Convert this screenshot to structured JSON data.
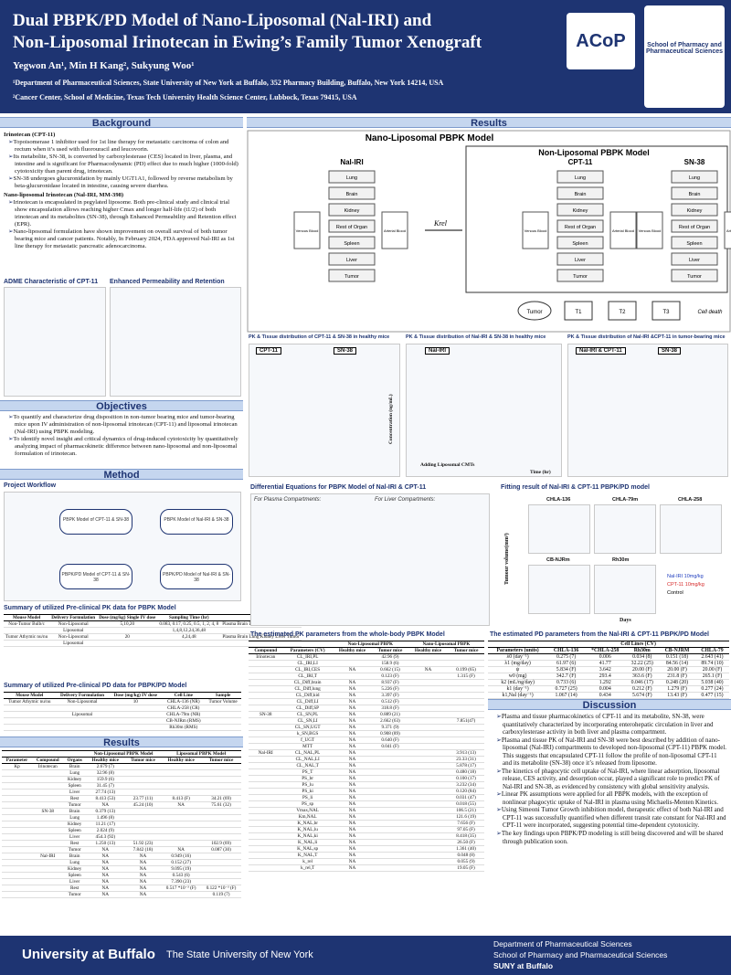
{
  "header": {
    "title_lines": [
      "Dual PBPK/PD Model of Nano-Liposomal (Nal-IRI) and",
      "Non-Liposomal Irinotecan in Ewing’s Family Tumor Xenograft"
    ],
    "authors": "Yegwon An¹, Min H Kang², Sukyung Woo¹",
    "affiliations": [
      "¹Department of Pharmaceutical Sciences, State University of New York at Buffalo, 352 Pharmacy Building, Buffalo, New York 14214, USA",
      "²Cancer Center, School of Medicine, Texas Tech University Health Science Center, Lubbock, Texas 79415, USA"
    ],
    "logos": [
      "ACoP",
      "School of Pharmacy and Pharmaceutical Sciences"
    ]
  },
  "background": {
    "heading": "Background",
    "items": [
      {
        "title": "Irinotecan (CPT-11)",
        "points": [
          "Topoisomerase 1 inhibitor used for 1st line therapy for metastatic carcinoma of colon and rectum when it’s used with fluorouracil and leucovorin.",
          "Its metabolite, SN-38, is converted by carboxylesterase (CES) located in liver, plasma, and intestine and is significant for Pharmacodynamic (PD) effect due to much higher (1000-fold) cytotoxicity than parent drug, irinotecan.",
          "SN-38 undergoes glucuronidation by mainly UGT1A1, followed by reverse metabolism by beta-glucuronidase located in intestine, causing severe diarrhea."
        ]
      },
      {
        "title": "Nano-liposomal Irinotecan (Nal-IRI, MM-398)",
        "points": [
          "Irinotecan is encapsulated in pegylated liposome. Both pre-clinical study and clinical trial show encapsulation allows reaching higher Cmax and longer half-life (t1/2) of both irinotecan and its metabolites (SN-38), through Enhanced Permeability and Retention effect (EPR).",
          "Nano-liposomal formulation have shown improvement on overall survival of both tumor bearing mice and cancer patients. Notably, In February 2024, FDA approved Nal-IRI as 1st line therapy for metastatic pancreatic adenocarcinoma."
        ]
      }
    ],
    "figures": [
      "ADME Characteristic of CPT-11",
      "Enhanced Permeability and Retention"
    ]
  },
  "objectives": {
    "heading": "Objectives",
    "points": [
      "To quantify and characterize drug disposition in non-tumor bearing mice and tumor-bearing mice upon IV administration of non-liposomal irinotecan (CPT-11) and liposomal irinotecan (Nal-IRI) using PBPK modeling.",
      "To identify novel insight and critical dynamics of drug-induced cytotoxicity by quantitatively analyzing impact of pharmacokinetic difference between nano-liposomal and non-liposomal formulation of irinotecan."
    ]
  },
  "method": {
    "heading": "Method",
    "workflow_title": "Project Workflow",
    "workflow_steps": [
      "PBPK Model of CPT-11 & SN-38",
      "PBPK Model of Nal-IRI & SN-38",
      "PBPK/PD Model of CPT-11 & SN-38",
      "PBPK/PD Model of Nal-IRI & SN-38"
    ],
    "pk_summary": {
      "title": "Summary of utilized Pre-clinical PK data for PBPK Model",
      "columns": [
        "Mouse Model",
        "Delivery Formulation",
        "Dose (mg/kg) Single IV dose",
        "Sampling Time (hr)",
        "Sample"
      ],
      "rows": [
        [
          "Non-Tumor Bulb/c",
          "Non-Liposomal",
          "5,10,20",
          "0.083, 0.17, 0.25, 0.5, 1, 2, 4, 8",
          "Plasma Brain Lung Kidney Liver Spleen"
        ],
        [
          "",
          "Liposomal",
          "",
          "1,4,8,12,24,36,48",
          ""
        ],
        [
          "Tumor Athymic nu/nu",
          "Non-Liposomal",
          "20",
          "4,24,48",
          "Plasma Brain Lung Kidney Liver Tumor"
        ],
        [
          "",
          "Liposomal",
          "",
          "",
          ""
        ]
      ]
    },
    "pd_summary": {
      "title": "Summary of utilized Pre-clinical PD data for PBPK/PD Model",
      "columns": [
        "Mouse Model",
        "Delivery Formulation",
        "Dose (mg/kg) IV dose",
        "Cell Line",
        "Sample"
      ],
      "rows": [
        [
          "Tumor Athymic nu/nu",
          "Non-Liposomal",
          "10",
          "CHLA-136 (NR)",
          "Tumor Volume"
        ],
        [
          "",
          "",
          "",
          "CHLA-258 (CR)",
          ""
        ],
        [
          "",
          "Liposomal",
          "",
          "CHLA-79m (NR)",
          ""
        ],
        [
          "",
          "",
          "",
          "CB-NJRm (RMS)",
          ""
        ],
        [
          "",
          "",
          "",
          "Rh30m (RMS)",
          ""
        ]
      ]
    }
  },
  "results_left": {
    "heading": "Results",
    "kp": {
      "columns": [
        "Parameter",
        "Compound",
        "Organs",
        "Healthy mice",
        "Tumor mice",
        "Healthy mice",
        "Tumor mice"
      ],
      "groups": [
        "Non-Liposomal PBPK Model",
        "Liposomal PBPK Model"
      ],
      "rows": [
        [
          "Kp",
          "Irinotecan",
          "Brain",
          "2.679 (7)",
          "",
          "",
          ""
        ],
        [
          "",
          "",
          "Lung",
          "32.96 (8)",
          "",
          "",
          ""
        ],
        [
          "",
          "",
          "Kidney",
          "159.9 (6)",
          "",
          "",
          ""
        ],
        [
          "",
          "",
          "Spleen",
          "31.45 (7)",
          "",
          "",
          ""
        ],
        [
          "",
          "",
          "Liver",
          "27.74 (13)",
          "",
          "",
          ""
        ],
        [
          "",
          "",
          "Rest",
          "8.413 (53)",
          "23.77 (11)",
          "8.413 (F)",
          "34.21 (69)"
        ],
        [
          "",
          "",
          "Tumor",
          "NA",
          "45.24 (10)",
          "NA",
          "75.61 (32)"
        ],
        [
          "",
          "SN-38",
          "Brain",
          "0.379 (13)",
          "",
          "",
          ""
        ],
        [
          "",
          "",
          "Lung",
          "1.496 (8)",
          "",
          "",
          ""
        ],
        [
          "",
          "",
          "Kidney",
          "11.21 (17)",
          "",
          "",
          ""
        ],
        [
          "",
          "",
          "Spleen",
          "2.024 (9)",
          "",
          "",
          ""
        ],
        [
          "",
          "",
          "Liver",
          "454.3 (92)",
          "",
          "",
          ""
        ],
        [
          "",
          "",
          "Rest",
          "1.250 (13)",
          "51.92 (23)",
          "",
          "102.9 (69)"
        ],
        [
          "",
          "",
          "Tumor",
          "NA",
          "7.842 (18)",
          "NA",
          "0.087 (30)"
        ],
        [
          "",
          "Nal-IRI",
          "Brain",
          "NA",
          "NA",
          "0.949 (16)",
          ""
        ],
        [
          "",
          "",
          "Lung",
          "NA",
          "NA",
          "0.152 (27)",
          ""
        ],
        [
          "",
          "",
          "Kidney",
          "NA",
          "NA",
          "9.095 (19)",
          ""
        ],
        [
          "",
          "",
          "Spleen",
          "NA",
          "NA",
          "0.543 (6)",
          ""
        ],
        [
          "",
          "",
          "Liver",
          "NA",
          "NA",
          "7.390 (23)",
          ""
        ],
        [
          "",
          "",
          "Rest",
          "NA",
          "NA",
          "0.517 *10⁻³ (F)",
          "0.122 *10⁻³ (F)"
        ],
        [
          "",
          "",
          "Tumor",
          "NA",
          "NA",
          "",
          "0.119 (7)"
        ]
      ]
    }
  },
  "results_right": {
    "heading": "Results",
    "pbpk_title": "Nano-Liposomal PBPK Model",
    "nonlipo_title": "Non-Liposomal PBPK Model",
    "compartments": [
      "Nal-IRI",
      "CPT-11",
      "SN-38"
    ],
    "organs": [
      "Lung",
      "Brain",
      "Kidney",
      "Rest of Organ",
      "Spleen",
      "Liver",
      "Tumor"
    ],
    "blood": [
      "Venous Blood",
      "Arterial Blood"
    ],
    "krel": "Krel",
    "pd_nodes": [
      "Tumor",
      "T1",
      "T2",
      "T3",
      "Cell death"
    ],
    "pk_panels": [
      "PK & Tissue distribution of CPT-11 & SN-38 in healthy mice",
      "PK & Tissue distribution of Nal-IRI & SN-38 in healthy mice",
      "PK & Tissue distribution of Nal-IRI &CPT-11 in tumor-bearing mice"
    ],
    "panel_labels": [
      "CPT-11",
      "SN-38",
      "Nal-IRI",
      "Nal-IRI & CPT-11",
      "SN-38"
    ],
    "axis": {
      "y": "Concentration (ng/mL)",
      "x": "Time (hr)",
      "note": "Adding Liposomal CMTs"
    },
    "eq_title": "Differential Equations for PBPK Model of Nal-IRI & CPT-11",
    "eq_sub": [
      "For Plasma Compartments:",
      "For Liver Compartments:"
    ],
    "fit_title": "Fitting result of Nal-IRI & CPT-11 PBPK/PD model",
    "fit_panels": [
      "CHLA-136",
      "CHLA-79m",
      "CHLA-258",
      "CB-NJRm",
      "Rh30m"
    ],
    "fit_legend": [
      "Nal-IRI 10mg/kg",
      "CPT-11 10mg/kg",
      "Control"
    ],
    "fit_axis": {
      "y": "Tumour volume(mm³)",
      "x": "Days"
    },
    "pk_table": {
      "title": "The estimated PK parameters from the whole-body PBPK Model",
      "groups": [
        "Non-Liposomal PBPK",
        "Nano-Liposomal PBPK"
      ],
      "columns": [
        "Compound",
        "Parameters (CV)",
        "Healthy mice",
        "Tumor mice",
        "Healthy mice",
        "Tumor mice"
      ],
      "rows": [
        [
          "Irinotecan",
          "CL_IRI,PL",
          "",
          "42.96 (9)",
          "",
          ""
        ],
        [
          "",
          "CL_IRI,LI",
          "",
          "158.9 (6)",
          "",
          ""
        ],
        [
          "",
          "CL_IRI,CES",
          "NA",
          "0.662 (15)",
          "NA",
          "0.199 (65)"
        ],
        [
          "",
          "CL_IRI,T",
          "",
          "0.123 (F)",
          "",
          "1.315 (F)"
        ],
        [
          "",
          "CL_Diff,brain",
          "NA",
          "8.937 (F)",
          "",
          ""
        ],
        [
          "",
          "CL_Diff,lung",
          "NA",
          "5.226 (F)",
          "",
          ""
        ],
        [
          "",
          "CL_Diff,kid",
          "NA",
          "3.397 (F)",
          "",
          ""
        ],
        [
          "",
          "CL_Diff,LI",
          "NA",
          "0.512 (F)",
          "",
          ""
        ],
        [
          "",
          "CL_Diff,SP",
          "NA",
          "318.8 (F)",
          "",
          ""
        ],
        [
          "SN-38",
          "CL_SN,PL",
          "NA",
          "0.889 (21)",
          "",
          ""
        ],
        [
          "",
          "CL_SN,LI",
          "NA",
          "2.662 (63)",
          "",
          "7.851(47)"
        ],
        [
          "",
          "CL_SN,UGT",
          "NA",
          "9.371 (9)",
          "",
          ""
        ],
        [
          "",
          "k_SN,BGS",
          "NA",
          "0.908 (89)",
          "",
          ""
        ],
        [
          "",
          "f_UGT",
          "NA",
          "0.640 (F)",
          "",
          ""
        ],
        [
          "",
          "MTT",
          "NA",
          "0.041 (F)",
          "",
          ""
        ],
        [
          "Nal-IRI",
          "CL_NAL,PL",
          "NA",
          "",
          "",
          "3.913 (13)"
        ],
        [
          "",
          "CL_NAL,LI",
          "NA",
          "",
          "",
          "23.33 (31)"
        ],
        [
          "",
          "CL_NAL,T",
          "NA",
          "",
          "",
          "5.878 (17)"
        ],
        [
          "",
          "PS_T",
          "NA",
          "",
          "",
          "0.480 (18)"
        ],
        [
          "",
          "PS_br",
          "NA",
          "",
          "",
          "0.100 (17)"
        ],
        [
          "",
          "PS_lu",
          "NA",
          "",
          "",
          "3.232 (34)"
        ],
        [
          "",
          "PS_ki",
          "NA",
          "",
          "",
          "0.120 (84)"
        ],
        [
          "",
          "PS_li",
          "NA",
          "",
          "",
          "0.031 (47)"
        ],
        [
          "",
          "PS_sp",
          "NA",
          "",
          "",
          "0.018 (55)"
        ],
        [
          "",
          "Vmax,NAL",
          "NA",
          "",
          "",
          "106.5 (21)"
        ],
        [
          "",
          "Km,NAL",
          "NA",
          "",
          "",
          "121.6 (19)"
        ],
        [
          "",
          "K_NAL,br",
          "NA",
          "",
          "",
          "7.656 (F)"
        ],
        [
          "",
          "K_NAL,lu",
          "NA",
          "",
          "",
          "97.05 (F)"
        ],
        [
          "",
          "K_NAL,ki",
          "NA",
          "",
          "",
          "8.418 (35)"
        ],
        [
          "",
          "K_NAL,li",
          "NA",
          "",
          "",
          "26.50 (F)"
        ],
        [
          "",
          "K_NAL,sp",
          "NA",
          "",
          "",
          "1.361 (40)"
        ],
        [
          "",
          "K_NAL,T",
          "NA",
          "",
          "",
          "0.048 (8)"
        ],
        [
          "",
          "k_rel",
          "NA",
          "",
          "",
          "0.055 (9)"
        ],
        [
          "",
          "k_rel,T",
          "NA",
          "",
          "",
          "19.05 (F)"
        ]
      ]
    },
    "pd_table": {
      "title": "The estimated PD parameters from the Nal-IRI & CPT-11 PBPK/PD Model",
      "group": "Cell Lines (CV)",
      "columns": [
        "Parameters (units)",
        "CHLA-136",
        "*CHLA-258",
        "Rh30m",
        "CB-NJRM",
        "CHLA-79"
      ],
      "rows": [
        [
          "λ0 (day⁻¹)",
          "0.275 (7)",
          "0.006",
          "0.034 (8)",
          "0.151 (18)",
          "2.643 (41)"
        ],
        [
          "λ1 (mg/day)",
          "61.97 (6)",
          "41.77",
          "32.22 (25)",
          "84.56 (14)",
          "89.74 (10)"
        ],
        [
          "ψ",
          "5.834 (F)",
          "3.642",
          "20.00 (F)",
          "20.00 (F)",
          "20.00 (F)"
        ],
        [
          "w0 (mg)",
          "342.7 (F)",
          "293.4",
          "363.6 (F)",
          "231.8 (F)",
          "265.1 (F)"
        ],
        [
          "k2 (mL/ng/day)",
          "0.733 (6)",
          "1.292",
          "0.046 (17)",
          "0.248 (20)",
          "5.038 (40)"
        ],
        [
          "k1 (day⁻¹)",
          "0.727 (25)",
          "0.004",
          "0.212 (F)",
          "1.279 (F)",
          "0.277 (24)"
        ],
        [
          "k1,Nal (day⁻¹)",
          "1.067 (14)",
          "0.434",
          "5.674 (F)",
          "13.43 (F)",
          "0.477 (15)"
        ]
      ]
    },
    "discussion": {
      "heading": "Discussion",
      "points": [
        "Plasma and tissue pharmacokinetics of CPT-11 and its metabolite, SN-38, were quantitatively characterized by incorporating enterohepatic circulation in liver and carboxylesterase activity in both liver and plasma compartment.",
        "Plasma and tissue PK of Nal-IRI and SN-38 were best described by addition of nano-liposomal (Nal-IRI) compartments to developed non-liposomal (CPT-11) PBPK model. This suggests that encapsulated CPT-11 follow the profile of non-liposomal CPT-11 and its metabolite (SN-38) once it’s released from liposome.",
        "The kinetics of phagocytic cell uptake of Nal-IRI, where linear adsorption, liposomal release, CES activity, and desorption occur, played a significant role to predict PK of Nal-IRI and SN-38, as evidenced by consistency with global sensitivity analysis.",
        "Linear PK assumptions were applied for all PBPK models, with the exception of nonlinear phagocytic uptake of Nal-IRI in plasma using Michaelis-Menten Kinetics.",
        "Using Simeoni Tumor Growth inhibition model, therapeutic effect of both Nal-IRI and CPT-11 was successfully quantified when different transit rate constant for Nal-IRI and CPT-11 were incorporated, suggesting potential time-dependent cytotoxicity.",
        "The key findings upon PBPK/PD modeling is still being discovered and will be shared through publication soon."
      ]
    }
  },
  "footer": {
    "university": "University at Buffalo",
    "tagline": "The State University of New York",
    "dept_lines": [
      "Department of Pharmaceutical Sciences",
      "School of Pharmacy and Pharmaceutical Sciences",
      "SUNY at Buffalo"
    ]
  }
}
